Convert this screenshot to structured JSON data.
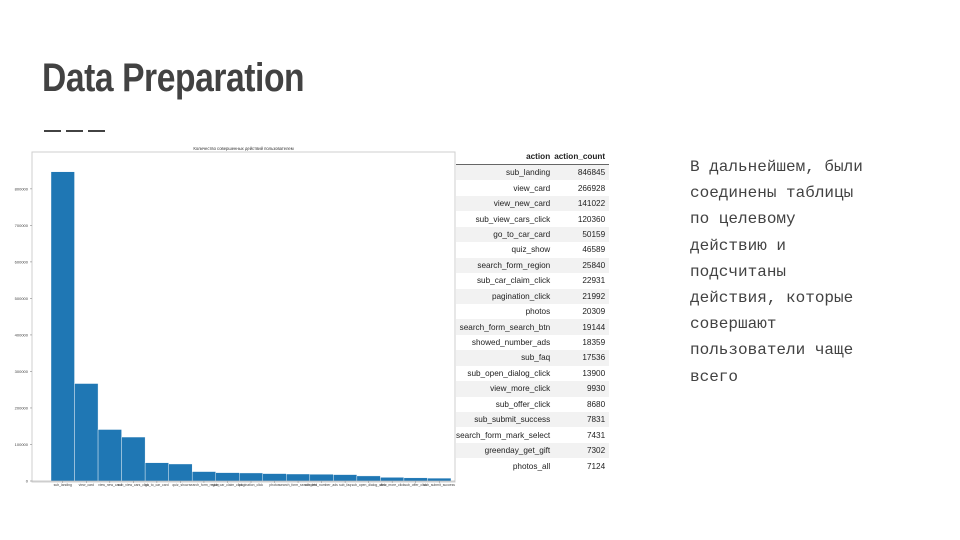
{
  "slide": {
    "title": "Data Preparation",
    "description": "В дальнейшем, были\nсоединены таблицы\nпо целевому\nдействию и\nподсчитаны\nдействия, которые\nсовершают\nпользователи чаще\nвсего"
  },
  "table": {
    "columns": [
      "action",
      "action_count"
    ],
    "rows": [
      [
        "sub_landing",
        "846845"
      ],
      [
        "view_card",
        "266928"
      ],
      [
        "view_new_card",
        "141022"
      ],
      [
        "sub_view_cars_click",
        "120360"
      ],
      [
        "go_to_car_card",
        "50159"
      ],
      [
        "quiz_show",
        "46589"
      ],
      [
        "search_form_region",
        "25840"
      ],
      [
        "sub_car_claim_click",
        "22931"
      ],
      [
        "pagination_click",
        "21992"
      ],
      [
        "photos",
        "20309"
      ],
      [
        "search_form_search_btn",
        "19144"
      ],
      [
        "showed_number_ads",
        "18359"
      ],
      [
        "sub_faq",
        "17536"
      ],
      [
        "sub_open_dialog_click",
        "13900"
      ],
      [
        "view_more_click",
        "9930"
      ],
      [
        "sub_offer_click",
        "8680"
      ],
      [
        "sub_submit_success",
        "7831"
      ],
      [
        "search_form_mark_select",
        "7431"
      ],
      [
        "greenday_get_gift",
        "7302"
      ],
      [
        "photos_all",
        "7124"
      ]
    ]
  },
  "chart_data": {
    "type": "bar",
    "title": "Количество совершенных действий пользователем",
    "categories": [
      "sub_landing",
      "view_card",
      "view_new_card",
      "sub_view_cars_click",
      "go_to_car_card",
      "quiz_show",
      "search_form_region",
      "sub_car_claim_click",
      "pagination_click",
      "photos",
      "search_form_search_btn",
      "showed_number_ads",
      "sub_faq",
      "sub_open_dialog_click",
      "view_more_click",
      "sub_offer_click",
      "sub_submit_success"
    ],
    "values": [
      846845,
      266928,
      141022,
      120360,
      50159,
      46589,
      25840,
      22931,
      21992,
      20309,
      19144,
      18359,
      17536,
      13900,
      9930,
      8680,
      7831
    ],
    "yticks": [
      0,
      100000,
      200000,
      300000,
      400000,
      500000,
      600000,
      700000,
      800000
    ],
    "ylim": [
      0,
      890000
    ],
    "color": "#1f77b4",
    "legend": "none",
    "grid": false
  }
}
